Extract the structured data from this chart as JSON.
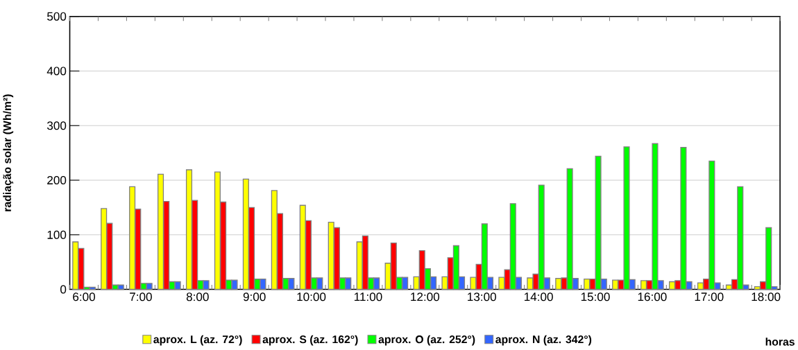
{
  "chart_data": {
    "type": "bar",
    "xlabel": "horas",
    "ylabel": "radiação solar (Wh/m²)",
    "categories": [
      "6:00",
      null,
      "7:00",
      null,
      "8:00",
      null,
      "9:00",
      null,
      "10:00",
      null,
      "11:00",
      null,
      "12:00",
      null,
      "13:00",
      null,
      "14:00",
      null,
      "15:00",
      null,
      "16:00",
      null,
      "17:00",
      null,
      "18:00"
    ],
    "series": [
      {
        "name": "aprox. L (az. 72°)",
        "color": "#ffff00",
        "values": [
          87,
          148,
          188,
          211,
          219,
          215,
          202,
          181,
          154,
          123,
          87,
          48,
          23,
          23,
          22,
          22,
          21,
          20,
          19,
          17,
          16,
          14,
          12,
          8,
          5
        ]
      },
      {
        "name": "aprox. S (az. 162°)",
        "color": "#ff0000",
        "values": [
          75,
          121,
          147,
          161,
          163,
          160,
          150,
          139,
          126,
          113,
          98,
          85,
          71,
          58,
          46,
          36,
          28,
          21,
          19,
          17,
          16,
          16,
          19,
          18,
          14
        ]
      },
      {
        "name": "aprox. O (az. 252°)",
        "color": "#00ff00",
        "values": [
          4,
          8,
          11,
          14,
          16,
          17,
          19,
          20,
          21,
          21,
          21,
          22,
          38,
          80,
          120,
          157,
          191,
          221,
          244,
          261,
          267,
          260,
          235,
          188,
          113
        ]
      },
      {
        "name": "aprox. N (az. 342°)",
        "color": "#3366ff",
        "values": [
          4,
          8,
          11,
          14,
          16,
          17,
          19,
          20,
          21,
          21,
          21,
          22,
          23,
          23,
          22,
          22,
          21,
          20,
          19,
          18,
          16,
          14,
          12,
          8,
          5
        ]
      }
    ],
    "ylim": [
      0,
      500
    ],
    "yticks": [
      0,
      100,
      200,
      300,
      400,
      500
    ],
    "grid": "y",
    "legend": "bottom"
  }
}
